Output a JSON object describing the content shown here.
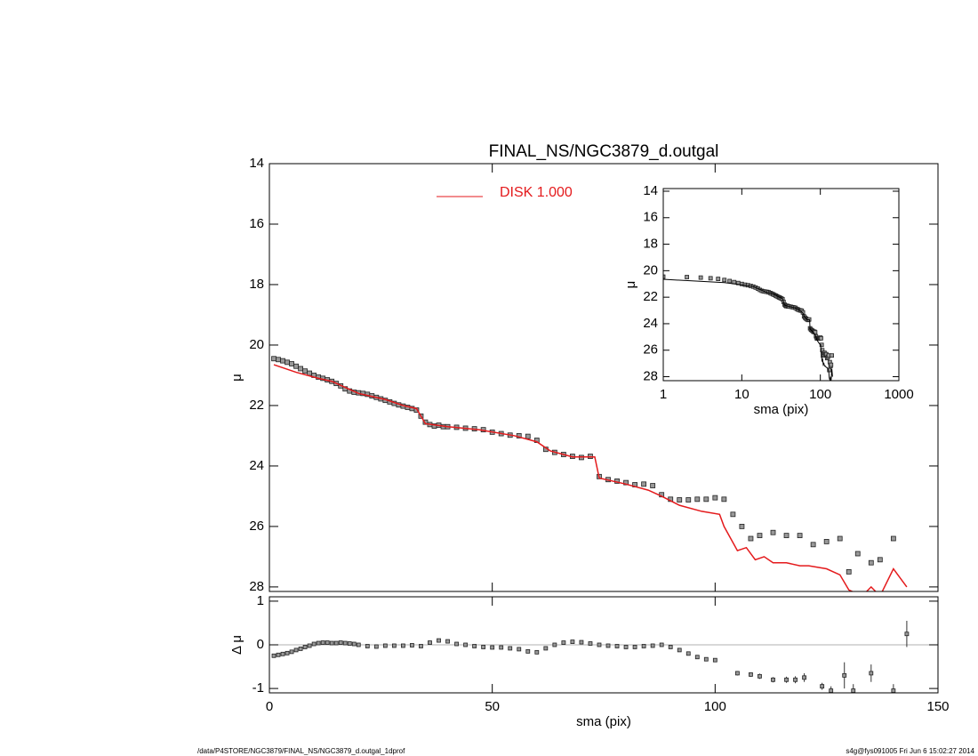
{
  "chart_data": [
    {
      "type": "scatter",
      "title": "FINAL_NS/NGC3879_d.outgal",
      "ylabel": "μ",
      "xlim": [
        0,
        150
      ],
      "xticks": [
        0,
        50,
        100,
        150
      ],
      "ylim": [
        14,
        28.15
      ],
      "yticks": [
        14,
        16,
        18,
        20,
        22,
        24,
        26,
        28
      ],
      "y_inverted": true,
      "legend": "top",
      "series": [
        {
          "color": "#999999",
          "marker": "square",
          "x": [
            1,
            2,
            3,
            4,
            5,
            6,
            7,
            8,
            9,
            10,
            11,
            12,
            13,
            14,
            15,
            16,
            17,
            18,
            19,
            20,
            21,
            22,
            23,
            24,
            25,
            26,
            27,
            28,
            29,
            30,
            31,
            32,
            33,
            34,
            35,
            36,
            37,
            38,
            39,
            40,
            42,
            44,
            46,
            48,
            50,
            52,
            54,
            56,
            58,
            60,
            62,
            64,
            66,
            68,
            70,
            72,
            74,
            76,
            78,
            80,
            82,
            84,
            86,
            88,
            90,
            92,
            94,
            96,
            98,
            100,
            102,
            104,
            106,
            108,
            110,
            113,
            116,
            119,
            122,
            125,
            128,
            130,
            132,
            135,
            137,
            140
          ],
          "values": [
            20.45,
            20.48,
            20.52,
            20.57,
            20.62,
            20.7,
            20.78,
            20.86,
            20.93,
            21.0,
            21.06,
            21.1,
            21.15,
            21.2,
            21.27,
            21.35,
            21.45,
            21.52,
            21.56,
            21.58,
            21.6,
            21.63,
            21.68,
            21.73,
            21.78,
            21.83,
            21.88,
            21.93,
            21.98,
            22.02,
            22.06,
            22.1,
            22.15,
            22.35,
            22.55,
            22.63,
            22.68,
            22.65,
            22.7,
            22.7,
            22.72,
            22.75,
            22.77,
            22.8,
            22.88,
            22.93,
            22.98,
            23.0,
            23.02,
            23.15,
            23.45,
            23.55,
            23.62,
            23.68,
            23.72,
            23.68,
            24.35,
            24.45,
            24.5,
            24.55,
            24.62,
            24.6,
            24.65,
            24.95,
            25.1,
            25.12,
            25.12,
            25.1,
            25.1,
            25.05,
            25.1,
            25.6,
            26.0,
            26.4,
            26.3,
            26.2,
            26.3,
            26.3,
            26.6,
            26.5,
            26.4,
            27.5,
            26.9,
            27.2,
            27.1,
            26.4
          ]
        },
        {
          "name": "DISK  1.000",
          "color": "#e41a1c",
          "marker": "line",
          "x": [
            1,
            6,
            11,
            14,
            20,
            26,
            30,
            33,
            35,
            40,
            47,
            55,
            60,
            63,
            68,
            73,
            74,
            80,
            85,
            88,
            92,
            97,
            101,
            102,
            105,
            107,
            109,
            111,
            113,
            116,
            119,
            121,
            125,
            128,
            130,
            133,
            135,
            137,
            140,
            143
          ],
          "values": [
            20.65,
            20.9,
            21.1,
            21.2,
            21.6,
            21.8,
            22.0,
            22.1,
            22.6,
            22.7,
            22.8,
            23.0,
            23.2,
            23.5,
            23.7,
            23.7,
            24.4,
            24.6,
            24.8,
            25.0,
            25.3,
            25.5,
            25.6,
            26.0,
            26.8,
            26.7,
            27.1,
            27.0,
            27.2,
            27.2,
            27.3,
            27.3,
            27.4,
            27.6,
            28.1,
            28.3,
            28.0,
            28.3,
            27.4,
            28.0
          ]
        }
      ]
    },
    {
      "type": "scatter",
      "xlabel": "sma (pix)",
      "ylabel": "μ",
      "xlog": true,
      "xlim": [
        1,
        1000
      ],
      "xticks": [
        1,
        10,
        100,
        1000
      ],
      "ylim": [
        13.8,
        28.3
      ],
      "yticks": [
        14,
        16,
        18,
        20,
        22,
        24,
        26,
        28
      ],
      "y_inverted": true
    },
    {
      "type": "scatter",
      "xlabel": "sma (pix)",
      "ylabel": "Δ μ",
      "xlim": [
        0,
        150
      ],
      "xticks": [
        0,
        50,
        100,
        150
      ],
      "ylim": [
        -1.1,
        1.1
      ],
      "yticks": [
        -1,
        0,
        1
      ],
      "zero_line": true,
      "series": [
        {
          "color": "#999999",
          "marker": "square",
          "x": [
            1,
            2,
            3,
            4,
            5,
            6,
            7,
            8,
            9,
            10,
            11,
            12,
            13,
            14,
            15,
            16,
            17,
            18,
            19,
            20,
            22,
            24,
            26,
            28,
            30,
            32,
            34,
            36,
            38,
            40,
            42,
            44,
            46,
            48,
            50,
            52,
            54,
            56,
            58,
            60,
            62,
            64,
            66,
            68,
            70,
            72,
            74,
            76,
            78,
            80,
            82,
            84,
            86,
            88,
            90,
            92,
            94,
            96,
            98,
            100
          ],
          "values": [
            -0.25,
            -0.23,
            -0.21,
            -0.19,
            -0.16,
            -0.12,
            -0.09,
            -0.05,
            -0.02,
            0.02,
            0.04,
            0.05,
            0.05,
            0.04,
            0.04,
            0.05,
            0.04,
            0.03,
            0.02,
            0.0,
            -0.03,
            -0.04,
            -0.02,
            -0.02,
            -0.02,
            -0.01,
            -0.03,
            0.05,
            0.1,
            0.08,
            0.02,
            0.0,
            -0.03,
            -0.05,
            -0.06,
            -0.06,
            -0.08,
            -0.1,
            -0.15,
            -0.17,
            -0.08,
            0.0,
            0.05,
            0.07,
            0.06,
            0.03,
            0.0,
            -0.02,
            -0.03,
            -0.05,
            -0.05,
            -0.03,
            -0.02,
            0.0,
            -0.05,
            -0.12,
            -0.2,
            -0.28,
            -0.33,
            -0.35
          ]
        },
        {
          "color": "#999999",
          "marker": "square",
          "x": [
            105,
            108,
            110,
            113,
            116,
            118,
            120,
            124,
            126,
            129,
            131,
            135,
            140,
            143
          ],
          "values": [
            -0.65,
            -0.68,
            -0.72,
            -0.8,
            -0.8,
            -0.8,
            -0.75,
            -0.95,
            -1.05,
            -0.7,
            -1.05,
            -0.65,
            -1.05,
            0.25
          ],
          "errors": [
            0.05,
            0.05,
            0.06,
            0.06,
            0.07,
            0.08,
            0.1,
            0.08,
            0.1,
            0.3,
            0.15,
            0.2,
            0.15,
            0.3
          ]
        }
      ]
    }
  ],
  "footer": {
    "left": "/data/P4STORE/NGC3879/FINAL_NS/NGC3879_d.outgal_1dprof",
    "right": "s4g@fys091005  Fri Jun  6 15:02:27 2014"
  }
}
